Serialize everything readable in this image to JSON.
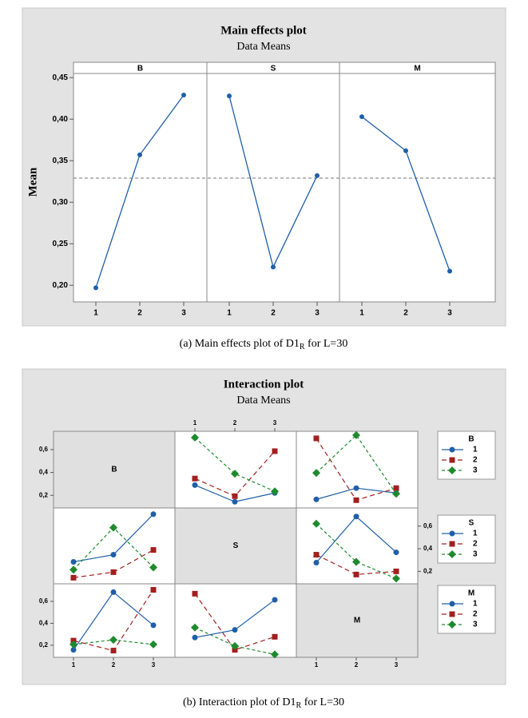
{
  "chart_data": [
    {
      "type": "line",
      "title": "Main effects plot",
      "subtitle": "Data Means",
      "ylabel": "Mean",
      "categories": [
        "1",
        "2",
        "3"
      ],
      "color": "#1f5fa8",
      "panels": [
        {
          "name": "B",
          "values": [
            0.197,
            0.357,
            0.429
          ]
        },
        {
          "name": "S",
          "values": [
            0.428,
            0.222,
            0.332
          ]
        },
        {
          "name": "M",
          "values": [
            0.403,
            0.362,
            0.217
          ]
        }
      ],
      "reference_line": 0.329,
      "ylim": [
        0.18,
        0.455
      ],
      "yticks": [
        {
          "value": 0.2,
          "label": "0,20"
        },
        {
          "value": 0.25,
          "label": "0,25"
        },
        {
          "value": 0.3,
          "label": "0,30"
        },
        {
          "value": 0.35,
          "label": "0,35"
        },
        {
          "value": 0.4,
          "label": "0,40"
        },
        {
          "value": 0.45,
          "label": "0,45"
        }
      ]
    },
    {
      "type": "interaction",
      "title": "Interaction plot",
      "subtitle": "Data Means",
      "factors": [
        "B",
        "S",
        "M"
      ],
      "levels": [
        "1",
        "2",
        "3"
      ],
      "series": [
        {
          "name": "1",
          "color": "#1f5fa8"
        },
        {
          "name": "2",
          "color": "#a31f1f"
        },
        {
          "name": "3",
          "color": "#1e8a2e"
        }
      ],
      "ylim": [
        0.09,
        0.76
      ],
      "yticks": [
        {
          "value": 0.2,
          "label": "0,2"
        },
        {
          "value": 0.4,
          "label": "0,4"
        },
        {
          "value": 0.6,
          "label": "0,6"
        }
      ],
      "cells": [
        [
          null,
          [
            [
              0.29,
              0.144,
              0.221
            ],
            [
              0.347,
              0.193,
              0.586
            ],
            [
              0.705,
              0.389,
              0.235
            ]
          ],
          [
            [
              0.165,
              0.263,
              0.221
            ],
            [
              0.698,
              0.158,
              0.263
            ],
            [
              0.396,
              0.726,
              0.214
            ]
          ]
        ],
        [
          [
            [
              0.284,
              0.347,
              0.705
            ],
            [
              0.144,
              0.193,
              0.389
            ],
            [
              0.214,
              0.586,
              0.235
            ]
          ],
          null,
          [
            [
              0.277,
              0.684,
              0.368
            ],
            [
              0.347,
              0.172,
              0.2
            ],
            [
              0.621,
              0.284,
              0.137
            ]
          ]
        ],
        [
          [
            [
              0.158,
              0.684,
              0.382
            ],
            [
              0.242,
              0.151,
              0.705
            ],
            [
              0.207,
              0.249,
              0.207
            ]
          ],
          [
            [
              0.27,
              0.34,
              0.614
            ],
            [
              0.67,
              0.158,
              0.277
            ],
            [
              0.361,
              0.193,
              0.116
            ]
          ],
          null
        ]
      ]
    }
  ],
  "captions": [
    {
      "text": "(a) Main effects plot of D1",
      "sub": "R",
      "tail": " for L=30"
    },
    {
      "text": "(b) Interaction plot of D1",
      "sub": "R",
      "tail": " for L=30"
    }
  ]
}
